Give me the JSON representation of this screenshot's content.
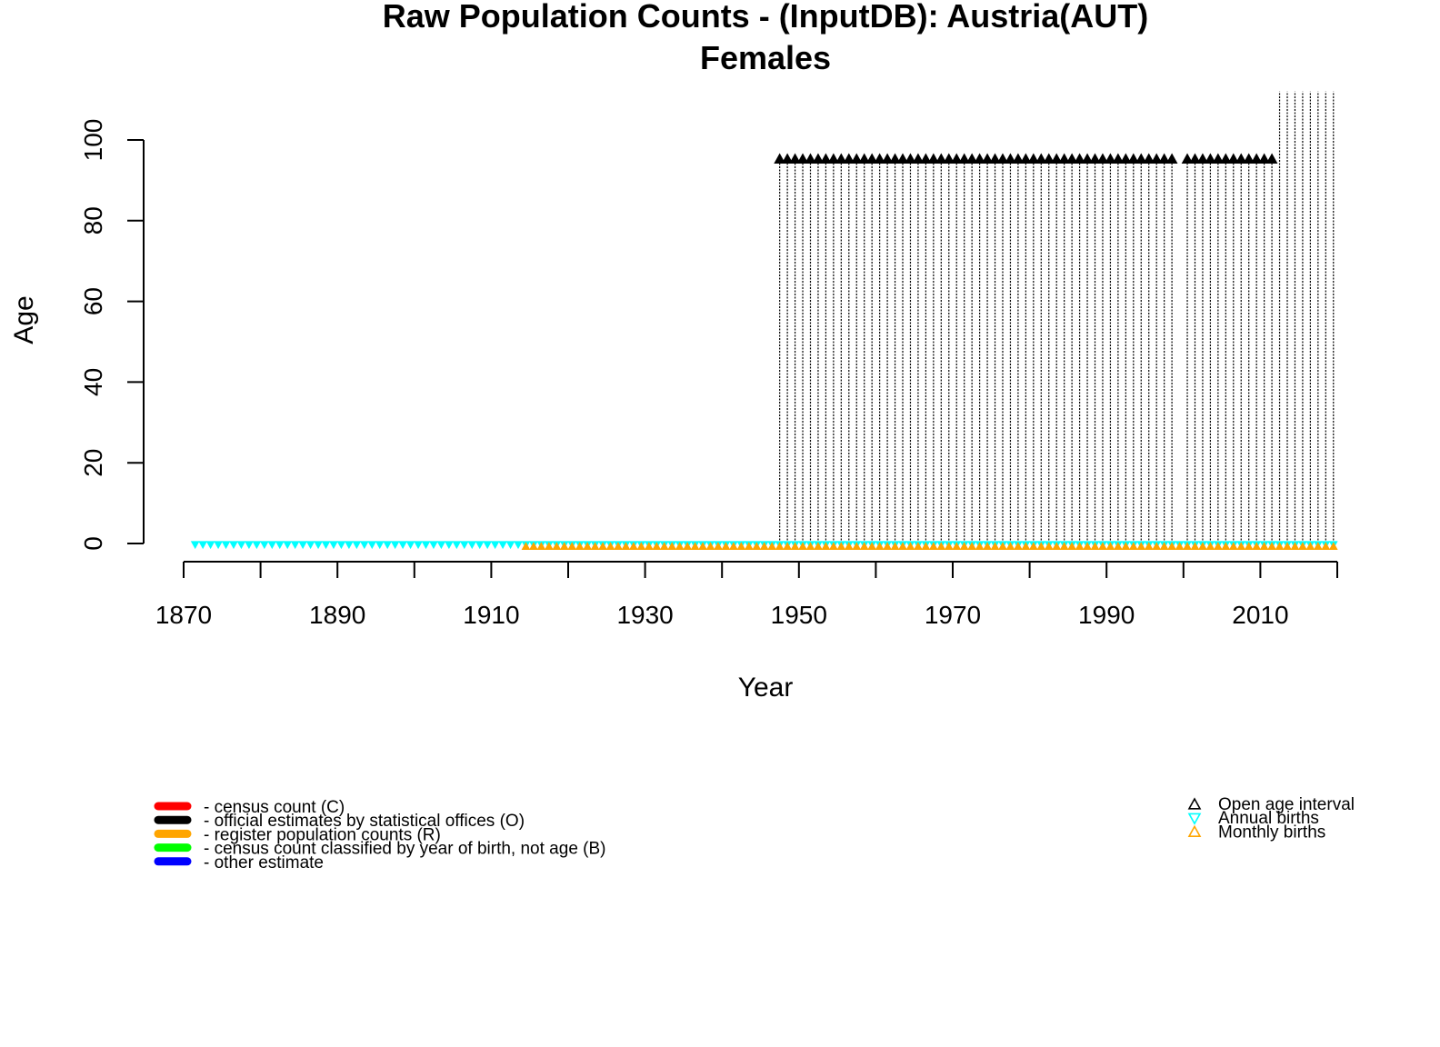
{
  "chart_data": {
    "type": "scatter",
    "title": "Raw Population Counts - (InputDB): Austria(AUT)",
    "subtitle": "Females",
    "xlabel": "Year",
    "ylabel": "Age",
    "xlim": [
      1870,
      2020
    ],
    "ylim": [
      0,
      100
    ],
    "x_ticks": [
      1870,
      1890,
      1910,
      1930,
      1950,
      1970,
      1990,
      2010
    ],
    "x_minor_ticks": [
      1870,
      1880,
      1890,
      1900,
      1910,
      1920,
      1930,
      1940,
      1950,
      1960,
      1970,
      1980,
      1990,
      2000,
      2010,
      2020
    ],
    "y_ticks": [
      0,
      20,
      40,
      60,
      80,
      100
    ],
    "colors": {
      "official_estimate": "#000000",
      "annual_births": "#00FFFF",
      "monthly_births": "#FFA500"
    },
    "series": [
      {
        "name": "official estimates by statistical offices (O)",
        "type": "age-range-segments",
        "color": "#000000",
        "year_ranges": [
          [
            1947,
            1998
          ],
          [
            2000,
            2011
          ]
        ],
        "age_min": 0,
        "open_age": 95
      },
      {
        "name": "official estimates by statistical offices (O)",
        "type": "age-range-segments",
        "color": "#000000",
        "year_ranges": [
          [
            2012,
            2019
          ]
        ],
        "age_min": 0,
        "age_max": 112
      },
      {
        "name": "Open age interval",
        "type": "points",
        "marker": "triangle-up",
        "color": "#000000",
        "year_ranges": [
          [
            1947,
            1998
          ],
          [
            2000,
            2011
          ]
        ],
        "age": 95
      },
      {
        "name": "Annual births",
        "type": "points",
        "marker": "triangle-down",
        "color": "#00FFFF",
        "year_range": [
          1871,
          2019
        ],
        "age": 0
      },
      {
        "name": "Monthly births",
        "type": "points",
        "marker": "triangle-up",
        "color": "#FFA500",
        "year_range": [
          1914,
          2019
        ],
        "age": -1
      }
    ],
    "legend_left": [
      {
        "label": "- census count (C)",
        "color": "#FF0000"
      },
      {
        "label": "- official estimates by statistical offices (O)",
        "color": "#000000"
      },
      {
        "label": "- register population counts (R)",
        "color": "#FFA500"
      },
      {
        "label": "- census count classified by year of birth, not age (B)",
        "color": "#00FF00"
      },
      {
        "label": "- other estimate",
        "color": "#0000FF"
      }
    ],
    "legend_right": [
      {
        "label": "Open age interval",
        "marker": "triangle-up",
        "color": "#000000"
      },
      {
        "label": "Annual births",
        "marker": "triangle-down",
        "color": "#00FFFF"
      },
      {
        "label": "Monthly births",
        "marker": "triangle-up",
        "color": "#FFA500"
      }
    ]
  }
}
